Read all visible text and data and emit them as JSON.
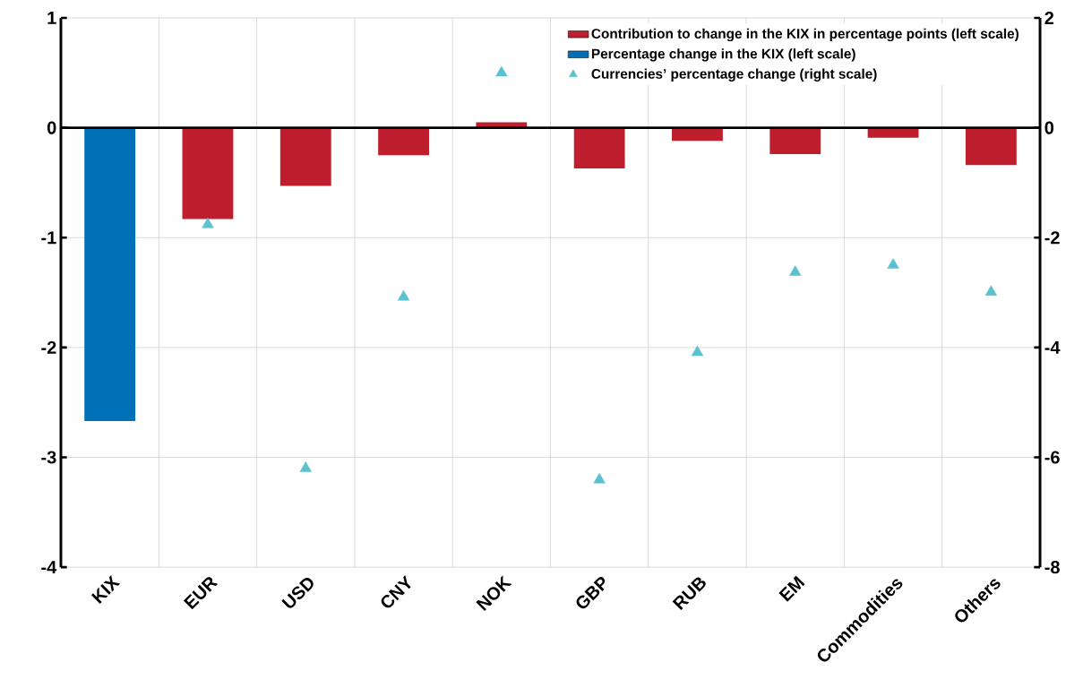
{
  "chart_data": {
    "type": "bar",
    "categories": [
      "KIX",
      "EUR",
      "USD",
      "CNY",
      "NOK",
      "GBP",
      "RUB",
      "EM",
      "Commodities",
      "Others"
    ],
    "series": [
      {
        "name": "Contribution to change in the KIX in percentage points (left scale)",
        "color": "#be1e2d",
        "values": [
          null,
          -0.83,
          -0.53,
          -0.25,
          0.05,
          -0.37,
          -0.12,
          -0.24,
          -0.09,
          -0.34
        ]
      },
      {
        "name": "Percentage change in the KIX (left scale)",
        "color": "#0070b8",
        "values": [
          -2.67,
          null,
          null,
          null,
          null,
          null,
          null,
          null,
          null,
          null
        ]
      },
      {
        "name": "Currencies’ percentage change (right scale)",
        "type": "scatter",
        "axis": "y2",
        "marker": "triangle",
        "color": "#5bc0d0",
        "values": [
          null,
          -1.76,
          -6.2,
          -3.08,
          1.0,
          -6.41,
          -4.09,
          -2.63,
          -2.5,
          -2.99
        ]
      }
    ],
    "ylim": [
      -4,
      1
    ],
    "yticks": [
      -4,
      -3,
      -2,
      -1,
      0,
      1
    ],
    "y2lim": [
      -8,
      2
    ],
    "y2ticks": [
      -8,
      -6,
      -4,
      -2,
      0,
      2
    ],
    "grid": true,
    "legend": "top right"
  }
}
